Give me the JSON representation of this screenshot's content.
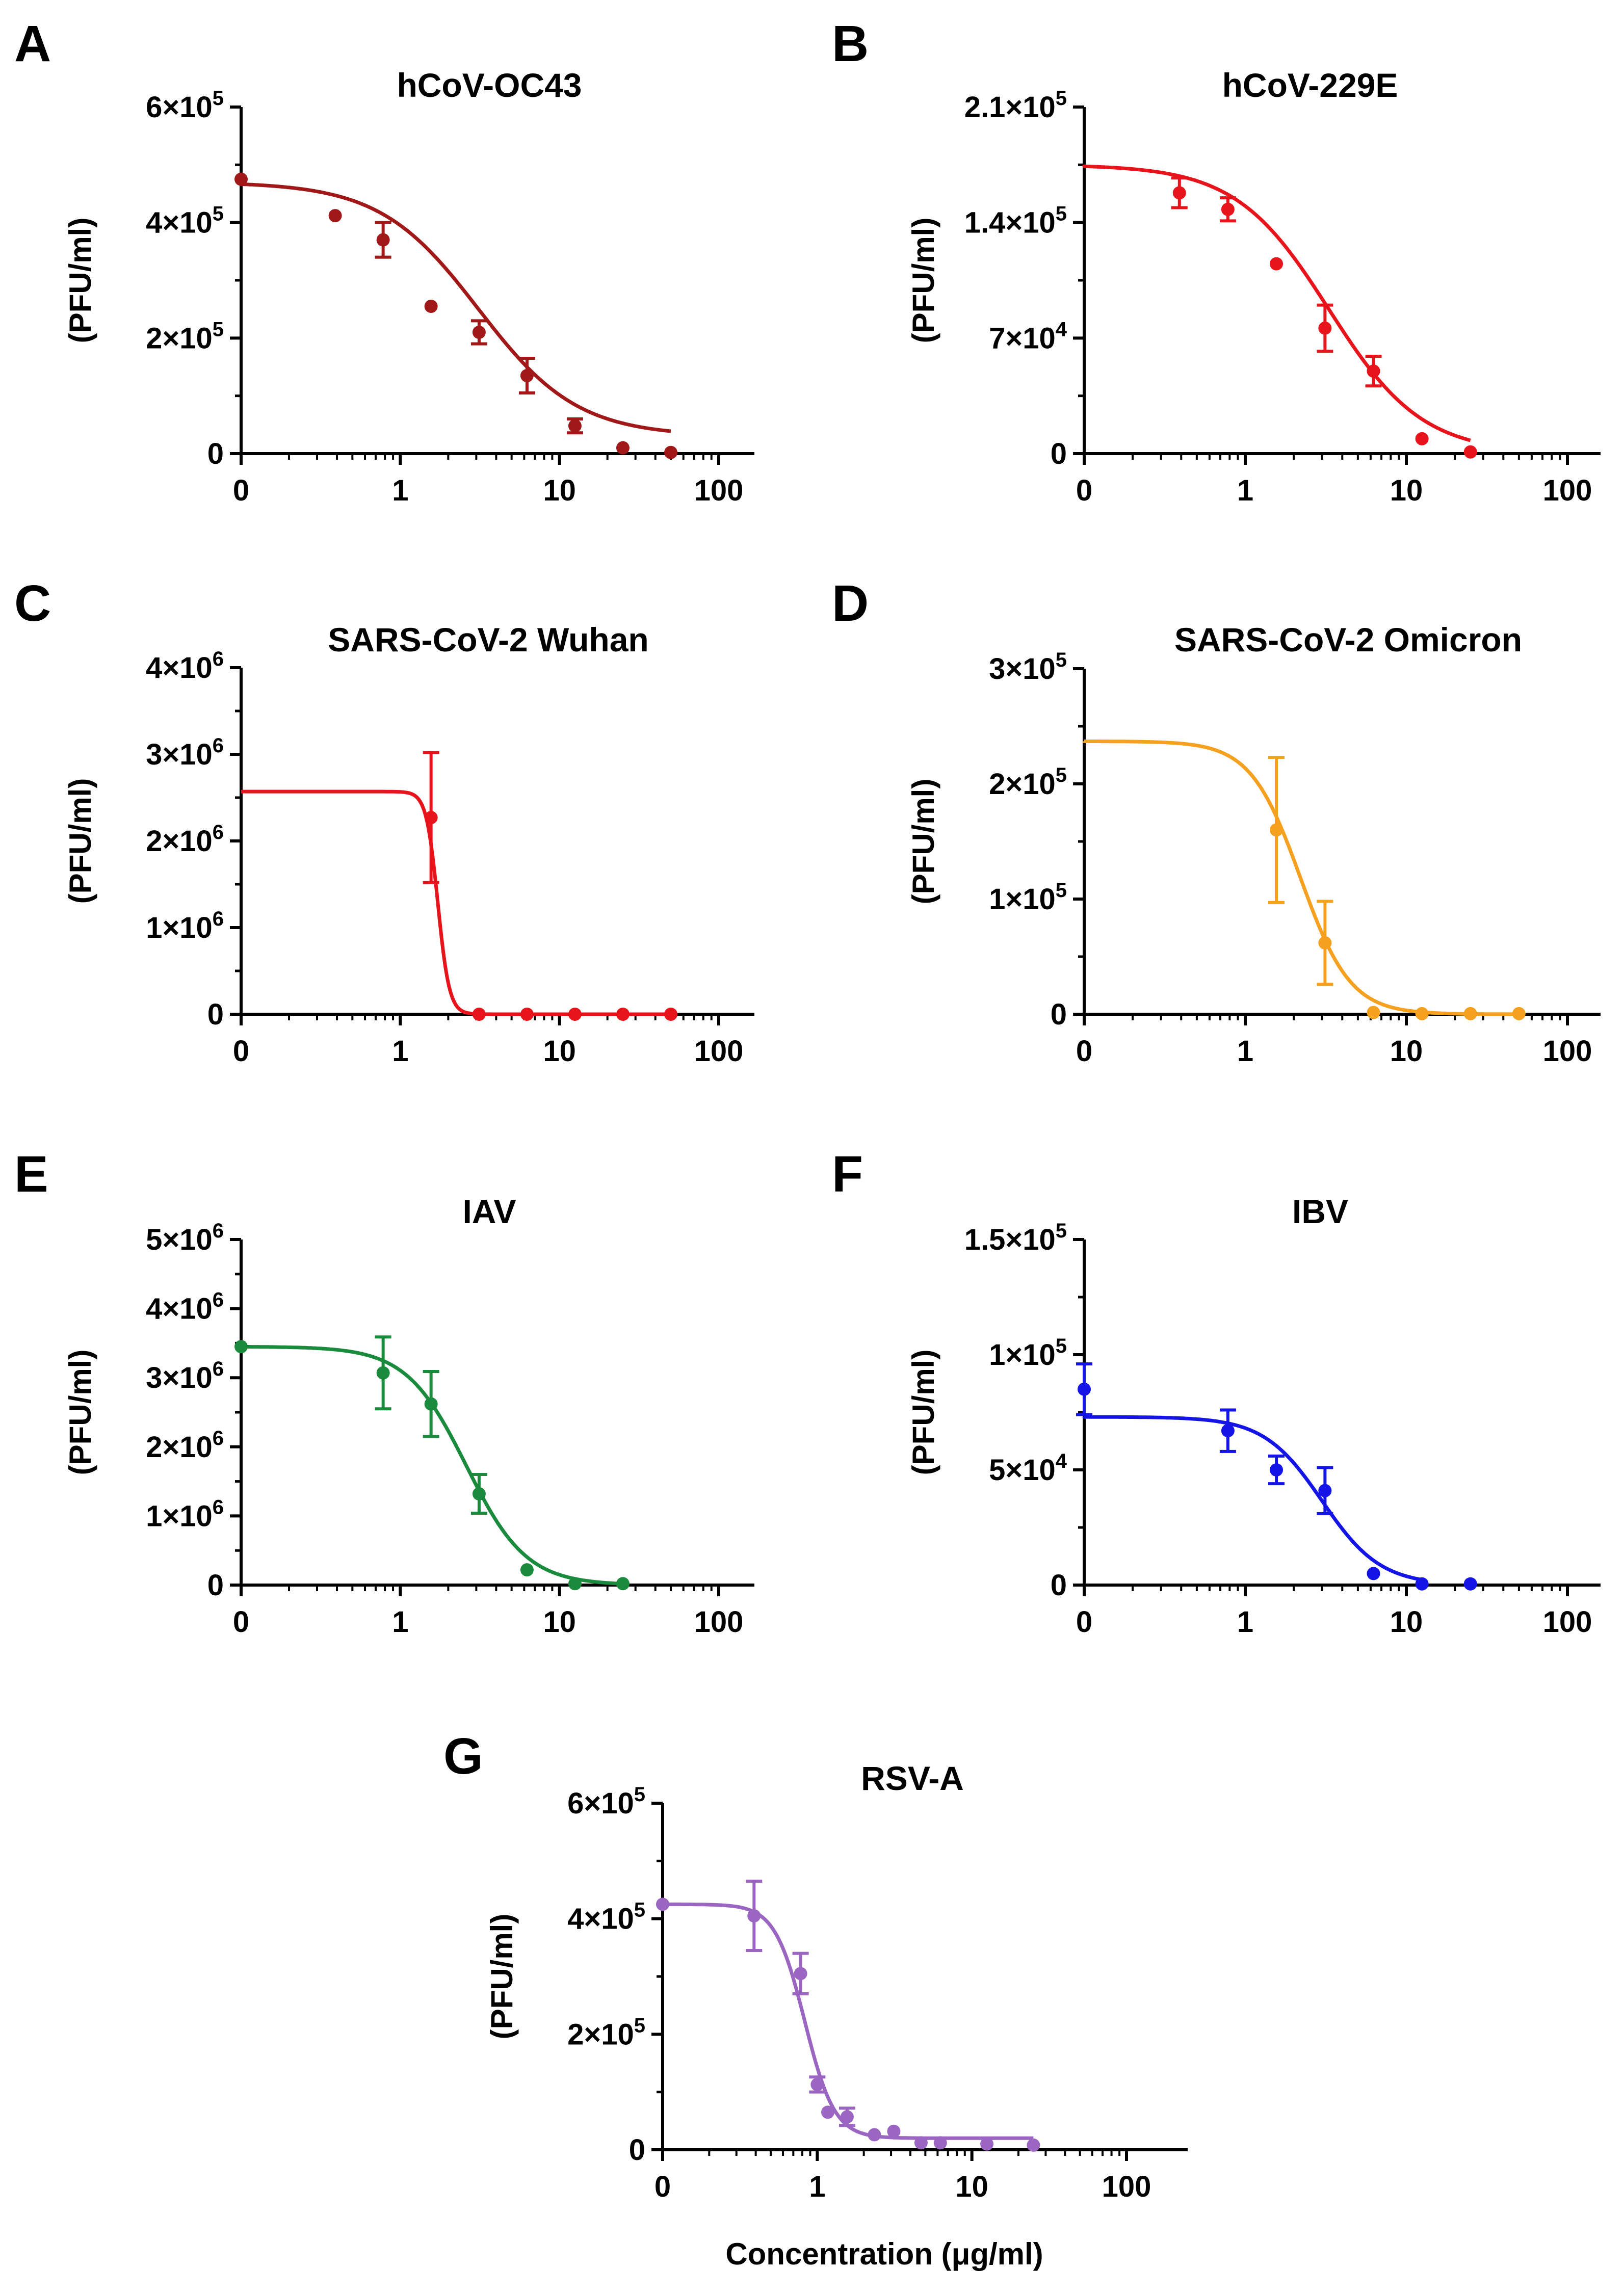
{
  "figure": {
    "xlabel_shared": "Concentration (μg/ml)"
  },
  "chart_data": [
    {
      "panel": "A",
      "type": "line",
      "title": "hCoV-OC43",
      "ylabel": "(PFU/ml)",
      "xscale": "log",
      "x_ticks": [
        {
          "value": 0,
          "label": "0"
        },
        {
          "value": 1,
          "label": "1"
        },
        {
          "value": 10,
          "label": "10"
        },
        {
          "value": 100,
          "label": "100"
        }
      ],
      "ylim": [
        0,
        600000
      ],
      "y_ticks": [
        {
          "value": 0,
          "mant": "0",
          "exp": ""
        },
        {
          "value": 200000,
          "mant": "2×10",
          "exp": "5"
        },
        {
          "value": 400000,
          "mant": "4×10",
          "exp": "5"
        },
        {
          "value": 600000,
          "mant": "6×10",
          "exp": "5"
        }
      ],
      "color": "#a01818",
      "points": [
        {
          "x": 0,
          "y": 475000,
          "err": 0
        },
        {
          "x": 0.39,
          "y": 412000,
          "err": 0
        },
        {
          "x": 0.78,
          "y": 370000,
          "err": 30000
        },
        {
          "x": 1.56,
          "y": 255000,
          "err": 0
        },
        {
          "x": 3.125,
          "y": 210000,
          "err": 20000
        },
        {
          "x": 6.25,
          "y": 135000,
          "err": 30000
        },
        {
          "x": 12.5,
          "y": 48000,
          "err": 12000
        },
        {
          "x": 25,
          "y": 10000,
          "err": 0
        },
        {
          "x": 50,
          "y": 2000,
          "err": 0
        }
      ],
      "fit": {
        "top": 470000,
        "bottom": 30000,
        "ec50": 3.1,
        "hill": 1.4,
        "x_end": 50
      }
    },
    {
      "panel": "B",
      "type": "line",
      "title": "hCoV-229E",
      "ylabel": "(PFU/ml)",
      "xscale": "log",
      "x_ticks": [
        {
          "value": 0,
          "label": "0"
        },
        {
          "value": 1,
          "label": "1"
        },
        {
          "value": 10,
          "label": "10"
        },
        {
          "value": 100,
          "label": "100"
        }
      ],
      "ylim": [
        0,
        210000
      ],
      "y_ticks": [
        {
          "value": 0,
          "mant": "0",
          "exp": ""
        },
        {
          "value": 70000,
          "mant": "7×10",
          "exp": "4"
        },
        {
          "value": 140000,
          "mant": "1.4×10",
          "exp": "5"
        },
        {
          "value": 210000,
          "mant": "2.1×10",
          "exp": "5"
        }
      ],
      "color": "#e8141c",
      "points": [
        {
          "x": 0.39,
          "y": 158000,
          "err": 9000
        },
        {
          "x": 0.78,
          "y": 148000,
          "err": 7000
        },
        {
          "x": 1.56,
          "y": 115000,
          "err": 0
        },
        {
          "x": 3.125,
          "y": 76000,
          "err": 14000
        },
        {
          "x": 6.25,
          "y": 50000,
          "err": 9000
        },
        {
          "x": 12.5,
          "y": 9000,
          "err": 0
        },
        {
          "x": 25,
          "y": 1000,
          "err": 0
        }
      ],
      "fit": {
        "top": 175000,
        "bottom": 0,
        "ec50": 3.3,
        "hill": 1.5,
        "x_end": 25
      }
    },
    {
      "panel": "C",
      "type": "line",
      "title": "SARS-CoV-2 Wuhan",
      "ylabel": "(PFU/ml)",
      "xscale": "log",
      "x_ticks": [
        {
          "value": 0,
          "label": "0"
        },
        {
          "value": 1,
          "label": "1"
        },
        {
          "value": 10,
          "label": "10"
        },
        {
          "value": 100,
          "label": "100"
        }
      ],
      "ylim": [
        0,
        4000000
      ],
      "y_ticks": [
        {
          "value": 0,
          "mant": "0",
          "exp": ""
        },
        {
          "value": 1000000,
          "mant": "1×10",
          "exp": "6"
        },
        {
          "value": 2000000,
          "mant": "2×10",
          "exp": "6"
        },
        {
          "value": 3000000,
          "mant": "3×10",
          "exp": "6"
        },
        {
          "value": 4000000,
          "mant": "4×10",
          "exp": "6"
        }
      ],
      "color": "#e8141c",
      "points": [
        {
          "x": 1.56,
          "y": 2270000,
          "err": 750000
        },
        {
          "x": 3.125,
          "y": 0,
          "err": 0
        },
        {
          "x": 6.25,
          "y": 0,
          "err": 0
        },
        {
          "x": 12.5,
          "y": 0,
          "err": 0
        },
        {
          "x": 25,
          "y": 0,
          "err": 0
        },
        {
          "x": 50,
          "y": 0,
          "err": 0
        }
      ],
      "fit": {
        "top": 2570000,
        "bottom": 0,
        "ec50": 1.72,
        "hill": 12,
        "x_end": 50
      }
    },
    {
      "panel": "D",
      "type": "line",
      "title": "SARS-CoV-2 Omicron",
      "ylabel": "(PFU/ml)",
      "xscale": "log",
      "x_ticks": [
        {
          "value": 0,
          "label": "0"
        },
        {
          "value": 1,
          "label": "1"
        },
        {
          "value": 10,
          "label": "10"
        },
        {
          "value": 100,
          "label": "100"
        }
      ],
      "ylim": [
        0,
        300000
      ],
      "y_ticks": [
        {
          "value": 0,
          "mant": "0",
          "exp": ""
        },
        {
          "value": 100000,
          "mant": "1×10",
          "exp": "5"
        },
        {
          "value": 200000,
          "mant": "2×10",
          "exp": "5"
        },
        {
          "value": 300000,
          "mant": "3×10",
          "exp": "5"
        }
      ],
      "color": "#f5a01e",
      "points": [
        {
          "x": 1.56,
          "y": 160000,
          "err": 63000
        },
        {
          "x": 3.125,
          "y": 62000,
          "err": 36000
        },
        {
          "x": 6.25,
          "y": 1500,
          "err": 0
        },
        {
          "x": 12.5,
          "y": 500,
          "err": 0
        },
        {
          "x": 25,
          "y": 500,
          "err": 0
        },
        {
          "x": 50,
          "y": 500,
          "err": 0
        }
      ],
      "fit": {
        "top": 237000,
        "bottom": 0,
        "ec50": 2.2,
        "hill": 2.8,
        "x_end": 50
      }
    },
    {
      "panel": "E",
      "type": "line",
      "title": "IAV",
      "ylabel": "(PFU/ml)",
      "xscale": "log",
      "x_ticks": [
        {
          "value": 0,
          "label": "0"
        },
        {
          "value": 1,
          "label": "1"
        },
        {
          "value": 10,
          "label": "10"
        },
        {
          "value": 100,
          "label": "100"
        }
      ],
      "ylim": [
        0,
        5000000
      ],
      "y_ticks": [
        {
          "value": 0,
          "mant": "0",
          "exp": ""
        },
        {
          "value": 1000000,
          "mant": "1×10",
          "exp": "6"
        },
        {
          "value": 2000000,
          "mant": "2×10",
          "exp": "6"
        },
        {
          "value": 3000000,
          "mant": "3×10",
          "exp": "6"
        },
        {
          "value": 4000000,
          "mant": "4×10",
          "exp": "6"
        },
        {
          "value": 5000000,
          "mant": "5×10",
          "exp": "6"
        }
      ],
      "color": "#1a8a3c",
      "points": [
        {
          "x": 0,
          "y": 3450000,
          "err": 0
        },
        {
          "x": 0.78,
          "y": 3070000,
          "err": 520000
        },
        {
          "x": 1.56,
          "y": 2620000,
          "err": 470000
        },
        {
          "x": 3.125,
          "y": 1320000,
          "err": 280000
        },
        {
          "x": 6.25,
          "y": 220000,
          "err": 0
        },
        {
          "x": 12.5,
          "y": 20000,
          "err": 0
        },
        {
          "x": 25,
          "y": 20000,
          "err": 0
        }
      ],
      "fit": {
        "top": 3450000,
        "bottom": 0,
        "ec50": 2.6,
        "hill": 2.3,
        "x_end": 25
      }
    },
    {
      "panel": "F",
      "type": "line",
      "title": "IBV",
      "ylabel": "(PFU/ml)",
      "xscale": "log",
      "x_ticks": [
        {
          "value": 0,
          "label": "0"
        },
        {
          "value": 1,
          "label": "1"
        },
        {
          "value": 10,
          "label": "10"
        },
        {
          "value": 100,
          "label": "100"
        }
      ],
      "ylim": [
        0,
        150000
      ],
      "y_ticks": [
        {
          "value": 0,
          "mant": "0",
          "exp": ""
        },
        {
          "value": 50000,
          "mant": "5×10",
          "exp": "4"
        },
        {
          "value": 100000,
          "mant": "1×10",
          "exp": "5"
        },
        {
          "value": 150000,
          "mant": "1.5×10",
          "exp": "5"
        }
      ],
      "color": "#1414e6",
      "points": [
        {
          "x": 0,
          "y": 85000,
          "err": 11000
        },
        {
          "x": 0.78,
          "y": 67000,
          "err": 9000
        },
        {
          "x": 1.56,
          "y": 50000,
          "err": 6000
        },
        {
          "x": 3.125,
          "y": 41000,
          "err": 10000
        },
        {
          "x": 6.25,
          "y": 5000,
          "err": 0
        },
        {
          "x": 12.5,
          "y": 500,
          "err": 0
        },
        {
          "x": 25,
          "y": 500,
          "err": 0
        }
      ],
      "fit": {
        "top": 73000,
        "bottom": 0,
        "ec50": 3.0,
        "hill": 2.4,
        "x_end": 12.5
      }
    },
    {
      "panel": "G",
      "type": "line",
      "title": "RSV-A",
      "ylabel": "(PFU/ml)",
      "xlabel": "Concentration (μg/ml)",
      "xscale": "log",
      "x_ticks": [
        {
          "value": 0,
          "label": "0"
        },
        {
          "value": 1,
          "label": "1"
        },
        {
          "value": 10,
          "label": "10"
        },
        {
          "value": 100,
          "label": "100"
        }
      ],
      "ylim": [
        0,
        600000
      ],
      "y_ticks": [
        {
          "value": 0,
          "mant": "0",
          "exp": ""
        },
        {
          "value": 200000,
          "mant": "2×10",
          "exp": "5"
        },
        {
          "value": 400000,
          "mant": "4×10",
          "exp": "5"
        },
        {
          "value": 600000,
          "mant": "6×10",
          "exp": "5"
        }
      ],
      "color": "#9b66c2",
      "points": [
        {
          "x": 0,
          "y": 425000,
          "err": 0
        },
        {
          "x": 0.39,
          "y": 405000,
          "err": 60000
        },
        {
          "x": 0.78,
          "y": 305000,
          "err": 35000
        },
        {
          "x": 1.0,
          "y": 113000,
          "err": 13000
        },
        {
          "x": 1.17,
          "y": 65000,
          "err": 0
        },
        {
          "x": 1.56,
          "y": 57000,
          "err": 15000
        },
        {
          "x": 2.34,
          "y": 26000,
          "err": 0
        },
        {
          "x": 3.125,
          "y": 32000,
          "err": 0
        },
        {
          "x": 4.69,
          "y": 12000,
          "err": 0
        },
        {
          "x": 6.25,
          "y": 12000,
          "err": 0
        },
        {
          "x": 12.5,
          "y": 10000,
          "err": 0
        },
        {
          "x": 25,
          "y": 8000,
          "err": 0
        }
      ],
      "fit": {
        "top": 425000,
        "bottom": 20000,
        "ec50": 0.83,
        "hill": 4.5,
        "x_end": 25
      }
    }
  ]
}
